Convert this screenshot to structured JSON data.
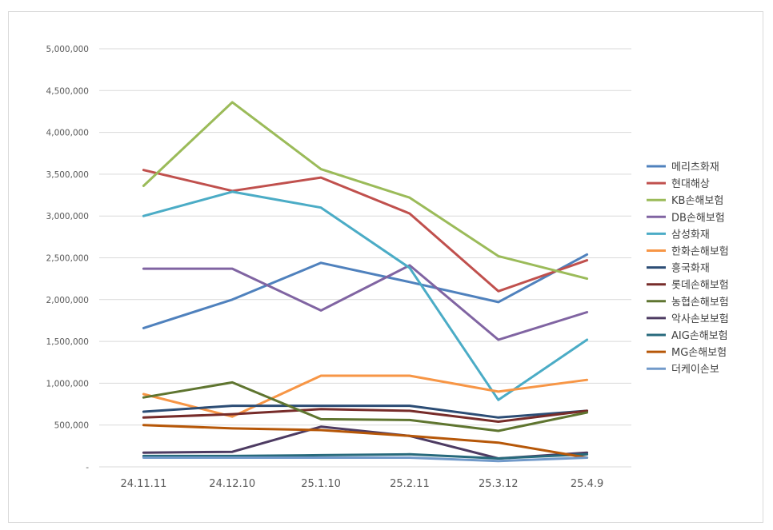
{
  "chart_data": {
    "type": "line",
    "title": "",
    "xlabel": "",
    "ylabel": "",
    "categories": [
      "24.11.11",
      "24.12.10",
      "25.1.10",
      "25.2.11",
      "25.3.12",
      "25.4.9"
    ],
    "ylim": [
      0,
      5000000
    ],
    "yticks": [
      0,
      500000,
      1000000,
      1500000,
      2000000,
      2500000,
      3000000,
      3500000,
      4000000,
      4500000,
      5000000
    ],
    "ytick_labels": [
      "-",
      "500,000",
      "1,000,000",
      "1,500,000",
      "2,000,000",
      "2,500,000",
      "3,000,000",
      "3,500,000",
      "4,000,000",
      "4,500,000",
      "5,000,000"
    ],
    "grid": "horizontal",
    "legend_position": "right",
    "series": [
      {
        "name": "메리츠화재",
        "color": "#4f81bd",
        "values": [
          1660000,
          2000000,
          2440000,
          2210000,
          1970000,
          2540000
        ]
      },
      {
        "name": "현대해상",
        "color": "#c0504d",
        "values": [
          3550000,
          3300000,
          3460000,
          3030000,
          2100000,
          2470000
        ]
      },
      {
        "name": "KB손해보험",
        "color": "#9bbb59",
        "values": [
          3360000,
          4360000,
          3560000,
          3220000,
          2520000,
          2250000
        ]
      },
      {
        "name": "DB손해보험",
        "color": "#8064a2",
        "values": [
          2370000,
          2370000,
          1870000,
          2410000,
          1520000,
          1850000
        ]
      },
      {
        "name": "삼성화재",
        "color": "#4bacc6",
        "values": [
          3000000,
          3290000,
          3100000,
          2380000,
          800000,
          1520000
        ]
      },
      {
        "name": "한화손해보험",
        "color": "#f79646",
        "values": [
          870000,
          600000,
          1090000,
          1090000,
          900000,
          1040000
        ]
      },
      {
        "name": "흥국화재",
        "color": "#2c4d75",
        "values": [
          660000,
          730000,
          730000,
          730000,
          590000,
          670000
        ]
      },
      {
        "name": "롯데손해보험",
        "color": "#772c2a",
        "values": [
          590000,
          630000,
          690000,
          670000,
          540000,
          670000
        ]
      },
      {
        "name": "농협손해보험",
        "color": "#5f7530",
        "values": [
          830000,
          1010000,
          570000,
          560000,
          430000,
          650000
        ]
      },
      {
        "name": "악사손보보험",
        "color": "#4d3b62",
        "values": [
          170000,
          180000,
          480000,
          370000,
          100000,
          170000
        ]
      },
      {
        "name": "AIG손해보험",
        "color": "#276a7c",
        "values": [
          130000,
          130000,
          140000,
          150000,
          100000,
          150000
        ]
      },
      {
        "name": "MG손해보험",
        "color": "#b65708",
        "values": [
          500000,
          460000,
          440000,
          370000,
          290000,
          110000
        ]
      },
      {
        "name": "더케이손보",
        "color": "#729aca",
        "values": [
          110000,
          110000,
          110000,
          110000,
          70000,
          110000
        ]
      }
    ]
  }
}
